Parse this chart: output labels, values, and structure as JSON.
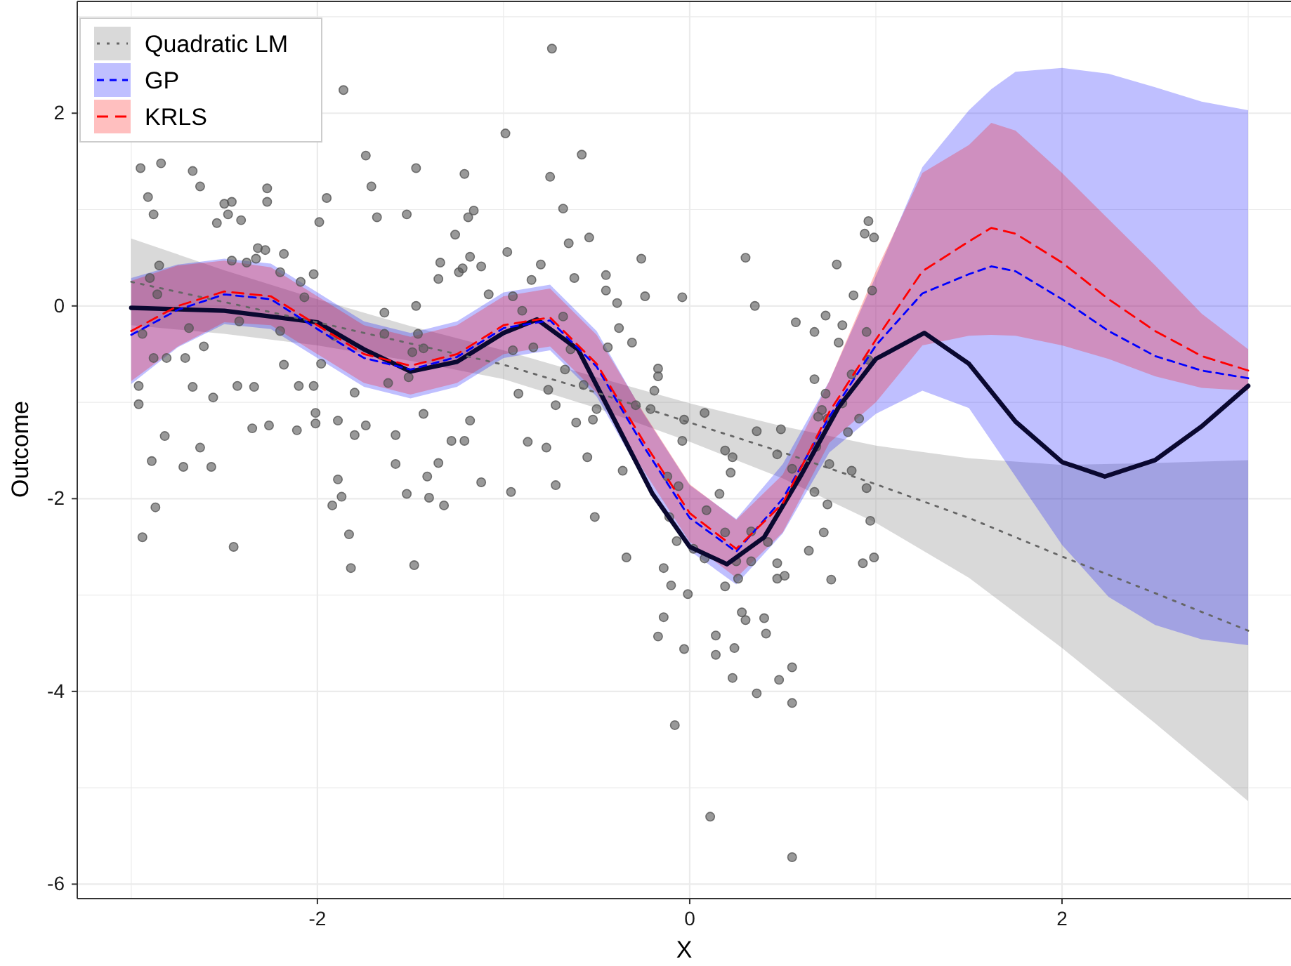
{
  "chart_data": {
    "type": "line",
    "xlabel": "X",
    "ylabel": "Outcome",
    "xlim": [
      -3.29,
      3.23
    ],
    "ylim": [
      -6.15,
      3.16
    ],
    "xticks": [
      {
        "value": -3,
        "label": null
      },
      -2,
      {
        "value": -1,
        "label": null
      },
      0,
      {
        "value": 1,
        "label": null
      },
      2,
      {
        "value": 3,
        "label": null
      }
    ],
    "yticks": [
      -6,
      {
        "value": -5,
        "label": null
      },
      -4,
      {
        "value": -3,
        "label": null
      },
      -2,
      {
        "value": -1,
        "label": null
      },
      0,
      {
        "value": 1,
        "label": null
      },
      2,
      {
        "value": 3,
        "label": null
      }
    ],
    "grid": true,
    "legend": "top left",
    "series": [
      {
        "color": "#0a0830",
        "line_style": "solid",
        "x": [
          -3,
          -2.5,
          -2,
          -1.75,
          -1.5,
          -1.25,
          -1,
          -0.82,
          -0.6,
          -0.4,
          -0.2,
          0,
          0.2,
          0.4,
          0.6,
          0.8,
          1,
          1.26,
          1.5,
          1.75,
          2,
          2.23,
          2.5,
          2.75,
          3
        ],
        "values": [
          -0.02,
          -0.05,
          -0.17,
          -0.45,
          -0.68,
          -0.58,
          -0.28,
          -0.14,
          -0.45,
          -1.2,
          -1.95,
          -2.5,
          -2.68,
          -2.4,
          -1.75,
          -1.05,
          -0.55,
          -0.28,
          -0.6,
          -1.2,
          -1.62,
          -1.77,
          -1.6,
          -1.25,
          -0.83
        ]
      },
      {
        "name": "Quadratic LM",
        "color": "#666666",
        "line_style": "dotted",
        "x": [
          -3,
          -2.5,
          -2,
          -1.5,
          -1,
          -0.5,
          0,
          0.5,
          1,
          1.5,
          2,
          2.5,
          3
        ],
        "values": [
          0.25,
          0.04,
          -0.17,
          -0.39,
          -0.61,
          -0.9,
          -1.21,
          -1.52,
          -1.85,
          -2.2,
          -2.6,
          -2.98,
          -3.37
        ],
        "lower": [
          -0.2,
          -0.29,
          -0.41,
          -0.57,
          -0.76,
          -1.06,
          -1.41,
          -1.79,
          -2.25,
          -2.82,
          -3.55,
          -4.33,
          -5.14
        ],
        "upper": [
          0.7,
          0.37,
          0.07,
          -0.21,
          -0.46,
          -0.74,
          -1.01,
          -1.25,
          -1.45,
          -1.58,
          -1.65,
          -1.63,
          -1.6
        ]
      },
      {
        "name": "GP",
        "color": "#0000ff",
        "line_style": "dashed",
        "x": [
          -3,
          -2.75,
          -2.5,
          -2.25,
          -2,
          -1.75,
          -1.5,
          -1.25,
          -1,
          -0.75,
          -0.5,
          -0.25,
          0,
          0.25,
          0.5,
          0.75,
          1,
          1.25,
          1.5,
          1.62,
          1.75,
          2,
          2.25,
          2.5,
          2.75,
          3
        ],
        "values": [
          -0.3,
          -0.04,
          0.12,
          0.07,
          -0.24,
          -0.54,
          -0.66,
          -0.53,
          -0.23,
          -0.15,
          -0.63,
          -1.45,
          -2.2,
          -2.55,
          -2,
          -1.15,
          -0.41,
          0.13,
          0.33,
          0.41,
          0.36,
          0.07,
          -0.26,
          -0.52,
          -0.67,
          -0.75
        ],
        "lower": [
          -0.81,
          -0.43,
          -0.19,
          -0.24,
          -0.54,
          -0.84,
          -0.96,
          -0.84,
          -0.54,
          -0.46,
          -0.94,
          -1.79,
          -2.54,
          -2.89,
          -2.36,
          -1.52,
          -1.12,
          -0.88,
          -1.06,
          -1.4,
          -1.77,
          -2.48,
          -3.02,
          -3.31,
          -3.46,
          -3.52
        ],
        "upper": [
          0.29,
          0.43,
          0.49,
          0.44,
          0.14,
          -0.16,
          -0.28,
          -0.16,
          0.14,
          0.22,
          -0.26,
          -1.11,
          -1.86,
          -2.21,
          -1.64,
          -0.78,
          0.31,
          1.44,
          2.03,
          2.25,
          2.43,
          2.47,
          2.41,
          2.27,
          2.12,
          2.03
        ]
      },
      {
        "name": "KRLS",
        "color": "#ff0000",
        "line_style": "dashed",
        "x": [
          -3,
          -2.75,
          -2.5,
          -2.25,
          -2,
          -1.75,
          -1.5,
          -1.25,
          -1,
          -0.75,
          -0.5,
          -0.25,
          0,
          0.25,
          0.5,
          0.75,
          1,
          1.25,
          1.5,
          1.62,
          1.75,
          2,
          2.25,
          2.5,
          2.75,
          3
        ],
        "values": [
          -0.26,
          0,
          0.15,
          0.1,
          -0.2,
          -0.5,
          -0.62,
          -0.5,
          -0.2,
          -0.12,
          -0.6,
          -1.4,
          -2.15,
          -2.52,
          -2.05,
          -1.1,
          -0.35,
          0.36,
          0.67,
          0.81,
          0.75,
          0.45,
          0.07,
          -0.26,
          -0.52,
          -0.67
        ],
        "lower": [
          -0.78,
          -0.42,
          -0.17,
          -0.2,
          -0.5,
          -0.8,
          -0.92,
          -0.8,
          -0.5,
          -0.42,
          -0.9,
          -1.7,
          -2.45,
          -2.82,
          -2.35,
          -1.42,
          -1,
          -0.41,
          -0.31,
          -0.3,
          -0.31,
          -0.41,
          -0.55,
          -0.73,
          -0.85,
          -0.88
        ],
        "upper": [
          0.26,
          0.42,
          0.47,
          0.4,
          0.1,
          -0.2,
          -0.32,
          -0.2,
          0.1,
          0.18,
          -0.3,
          -1.1,
          -1.85,
          -2.22,
          -1.75,
          -0.78,
          0.36,
          1.38,
          1.67,
          1.9,
          1.82,
          1.38,
          0.9,
          0.42,
          -0.08,
          -0.45
        ]
      },
      {
        "type": "scatter",
        "color": "#555555",
        "marker": "circle",
        "x": [
          -2.95,
          -2.84,
          -2.91,
          -2.88,
          -2.67,
          -2.63,
          -1.86,
          -1.74,
          -1.71,
          -1.47,
          -1.21,
          -1.68,
          -1.52,
          -1.19,
          -1.16,
          -2.27,
          -2.27,
          -2.5,
          -2.46,
          -2.48,
          -2.54,
          -2.41,
          -1.95,
          -1.99,
          -2.85,
          -2.9,
          -2.46,
          -2.32,
          -2.28,
          -2.38,
          -2.33,
          -2.18,
          -2.2,
          -2.09,
          -2.02,
          -2.07,
          -1.26,
          -1.34,
          -1.35,
          -1.24,
          -1.22,
          -1.18,
          -1.12,
          -1.08,
          -1.64,
          -1.47,
          -1.46,
          -1.64,
          -1.43,
          -1.49,
          -1.91,
          -1.98,
          -2.18,
          -2.2,
          -2.42,
          -2.61,
          -2.69,
          -2.94,
          -2.86,
          -2.88,
          -2.81,
          -2.71,
          -2.96,
          -2.96,
          -2.67,
          -2.56,
          -2.43,
          -2.34,
          -2.1,
          -2.02,
          -1.8,
          -1.62,
          -1.51,
          -2.01,
          -2.01,
          -1.89,
          -1.74,
          -1.8,
          -1.43,
          -1.18,
          -1.58,
          -1.28,
          -1.21,
          -2.35,
          -2.26,
          -2.11,
          -2.82,
          -2.63,
          -2.89,
          -2.72,
          -2.57,
          -1.58,
          -1.35,
          -1.12,
          -1.41,
          -1.52,
          -1.4,
          -1.32,
          -1.92,
          -1.87,
          -1.89,
          -2.87,
          -2.94,
          -1.83,
          -2.45,
          -1.82,
          -1.48,
          -0.74,
          -0.99,
          -0.58,
          -0.75,
          -0.68,
          -0.65,
          -0.54,
          -0.8,
          -0.62,
          -0.85,
          -0.98,
          -0.45,
          -0.45,
          -0.39,
          -0.26,
          -0.24,
          -0.38,
          -0.31,
          -0.44,
          -0.04,
          0.3,
          0.35,
          -0.95,
          -0.9,
          -0.95,
          -0.84,
          -0.92,
          -0.67,
          -0.76,
          -0.72,
          -0.57,
          -0.64,
          -0.68,
          -0.5,
          -0.61,
          -0.52,
          -0.87,
          -0.77,
          -0.72,
          -0.96,
          -0.55,
          -0.51,
          -0.36,
          -0.34,
          -0.29,
          -0.21,
          -0.19,
          -0.17,
          -0.17,
          -0.03,
          -0.04,
          0.08,
          -0.12,
          -0.06,
          -0.07,
          -0.11,
          0.02,
          0.09,
          0.16,
          0.19,
          0.08,
          0.19,
          0.23,
          0.22,
          0.36,
          0.49,
          0.47,
          0.55,
          0.33,
          0.25,
          0.33,
          0.42,
          0.47,
          0.47,
          0.51,
          0.26,
          0.19,
          -0.14,
          -0.1,
          -0.01,
          -0.14,
          -0.17,
          -0.03,
          0.14,
          0.14,
          0.24,
          0.28,
          0.3,
          0.4,
          0.41,
          0.23,
          0.36,
          0.48,
          0.55,
          0.55,
          -0.08,
          0.11,
          0.55,
          0.57,
          0.67,
          0.73,
          0.82,
          0.8,
          0.79,
          0.88,
          0.98,
          0.95,
          0.96,
          0.94,
          0.99,
          0.67,
          0.73,
          0.71,
          0.69,
          0.74,
          0.82,
          0.87,
          0.96,
          0.91,
          0.85,
          0.87,
          0.74,
          0.95,
          0.97,
          0.72,
          0.64,
          0.76,
          0.93,
          0.99,
          0.68,
          0.75,
          0.67
        ],
        "values": [
          1.43,
          1.48,
          1.13,
          0.95,
          1.4,
          1.24,
          2.24,
          1.56,
          1.24,
          1.43,
          1.37,
          0.92,
          0.95,
          0.92,
          0.99,
          1.22,
          1.08,
          1.06,
          1.08,
          0.95,
          0.86,
          0.89,
          1.12,
          0.87,
          0.42,
          0.29,
          0.47,
          0.6,
          0.58,
          0.45,
          0.49,
          0.54,
          0.35,
          0.25,
          0.33,
          0.09,
          0.74,
          0.45,
          0.28,
          0.35,
          0.39,
          0.51,
          0.41,
          0.12,
          -0.07,
          0,
          -0.29,
          -0.29,
          -0.44,
          -0.48,
          -0.31,
          -0.6,
          -0.61,
          -0.26,
          -0.16,
          -0.42,
          -0.23,
          -0.29,
          0.12,
          -0.54,
          -0.54,
          -0.54,
          -0.83,
          -1.02,
          -0.84,
          -0.95,
          -0.83,
          -0.84,
          -0.83,
          -0.83,
          -0.9,
          -0.8,
          -0.74,
          -1.11,
          -1.22,
          -1.19,
          -1.24,
          -1.34,
          -1.12,
          -1.19,
          -1.34,
          -1.4,
          -1.4,
          -1.27,
          -1.24,
          -1.29,
          -1.35,
          -1.47,
          -1.61,
          -1.67,
          -1.67,
          -1.64,
          -1.63,
          -1.83,
          -1.77,
          -1.95,
          -1.99,
          -2.07,
          -2.07,
          -1.98,
          -1.8,
          -2.09,
          -2.4,
          -2.37,
          -2.5,
          -2.72,
          -2.69,
          2.67,
          1.79,
          1.57,
          1.34,
          1.01,
          0.65,
          0.71,
          0.43,
          0.29,
          0.27,
          0.56,
          0.32,
          0.16,
          0.03,
          0.49,
          0.1,
          -0.23,
          -0.38,
          -0.43,
          0.09,
          0.5,
          0,
          0.1,
          -0.05,
          -0.46,
          -0.43,
          -0.91,
          -0.66,
          -0.87,
          -1.03,
          -0.82,
          -0.45,
          -0.11,
          -1.07,
          -1.21,
          -1.18,
          -1.41,
          -1.47,
          -1.86,
          -1.93,
          -1.57,
          -2.19,
          -1.71,
          -2.61,
          -1.03,
          -1.07,
          -0.88,
          -0.73,
          -0.65,
          -1.18,
          -1.4,
          -1.11,
          -1.77,
          -1.87,
          -2.44,
          -2.19,
          -2.52,
          -2.12,
          -1.95,
          -2.35,
          -2.62,
          -1.5,
          -1.57,
          -1.73,
          -1.3,
          -1.28,
          -1.54,
          -1.69,
          -2.34,
          -2.65,
          -2.65,
          -2.45,
          -2.67,
          -2.83,
          -2.8,
          -2.83,
          -2.91,
          -2.72,
          -2.9,
          -2.99,
          -3.23,
          -3.43,
          -3.56,
          -3.42,
          -3.62,
          -3.55,
          -3.18,
          -3.26,
          -3.24,
          -3.4,
          -3.86,
          -4.02,
          -3.88,
          -3.75,
          -4.12,
          -4.35,
          -5.3,
          -5.72,
          -0.17,
          -0.27,
          -0.1,
          -0.2,
          -0.38,
          0.43,
          0.11,
          0.16,
          -0.27,
          0.88,
          0.75,
          0.71,
          -0.76,
          -0.91,
          -1.08,
          -1.15,
          -1.17,
          -1.01,
          -0.71,
          -0.56,
          -1.17,
          -1.31,
          -1.71,
          -2.06,
          -1.89,
          -2.23,
          -2.35,
          -2.54,
          -2.84,
          -2.67,
          -2.61,
          -1.46,
          -1.64,
          -1.93
        ]
      }
    ]
  }
}
